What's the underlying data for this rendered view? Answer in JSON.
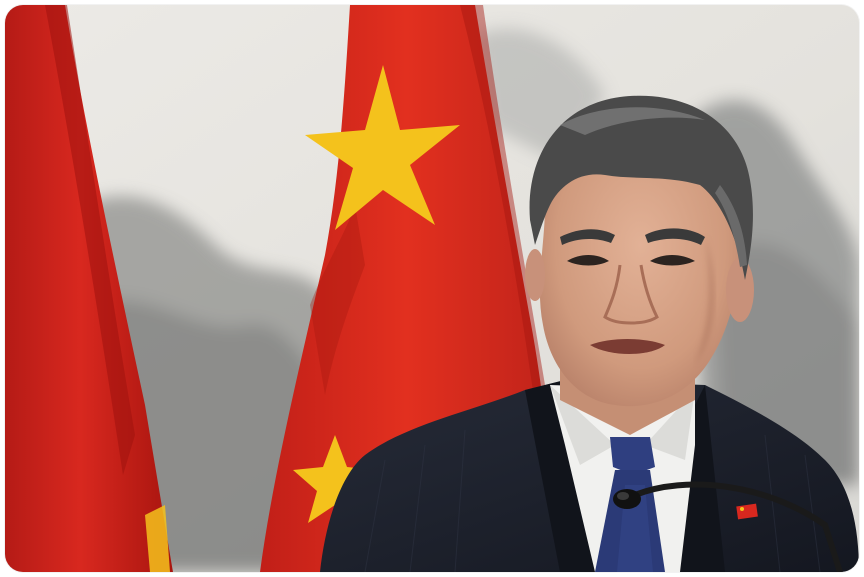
{
  "photo": {
    "subject": "man-speaking-at-microphone",
    "background": "ink-wash-landscape-painting",
    "colors": {
      "flag_red": "#d8281f",
      "flag_yellow": "#f4c21c",
      "suit": "#1b1f2b",
      "shirt": "#f2f2f0",
      "tie": "#2b3a77",
      "hair": "#4a4a4a",
      "skin": "#d7a488"
    }
  }
}
